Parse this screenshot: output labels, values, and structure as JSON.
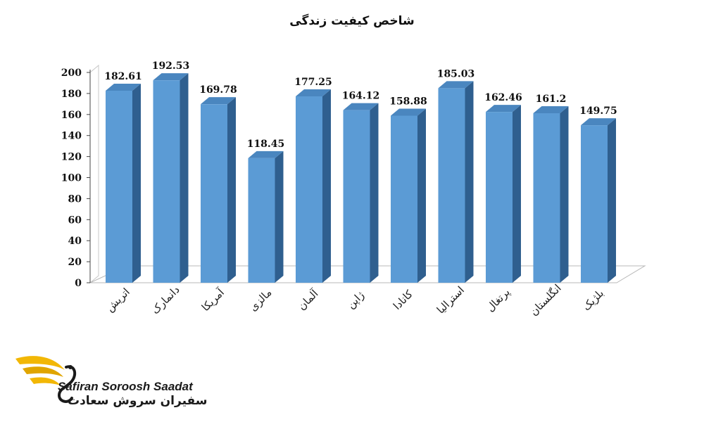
{
  "chart_data": {
    "type": "bar",
    "title": "شاخص کیفیت زندگی",
    "categories": [
      "اتریش",
      "دانمارک",
      "آمریکا",
      "مالزی",
      "آلمان",
      "ژاپن",
      "کانادا",
      "استرالیا",
      "پرتغال",
      "انگلستان",
      "بلژیک"
    ],
    "values": [
      182.61,
      192.53,
      169.78,
      118.45,
      177.25,
      164.12,
      158.88,
      185.03,
      162.46,
      161.2,
      149.75
    ],
    "value_labels": [
      "182.61",
      "192.53",
      "169.78",
      "118.45",
      "177.25",
      "164.12",
      "158.88",
      "185.03",
      "162.46",
      "161.2",
      "149.75"
    ],
    "ylim": [
      0,
      200
    ],
    "yticks": [
      0,
      20,
      40,
      60,
      80,
      100,
      120,
      140,
      160,
      180,
      200
    ],
    "grid": false,
    "style": "3d-bar",
    "bar_color": "#5b9bd5",
    "bar_side_color": "#2f5f8f",
    "bar_top_color": "#4a86bf"
  },
  "logo": {
    "name_en": "Safiran Soroosh Saadat",
    "name_fa": "سفیران سروش سعادت",
    "accent_color": "#f2b705"
  }
}
